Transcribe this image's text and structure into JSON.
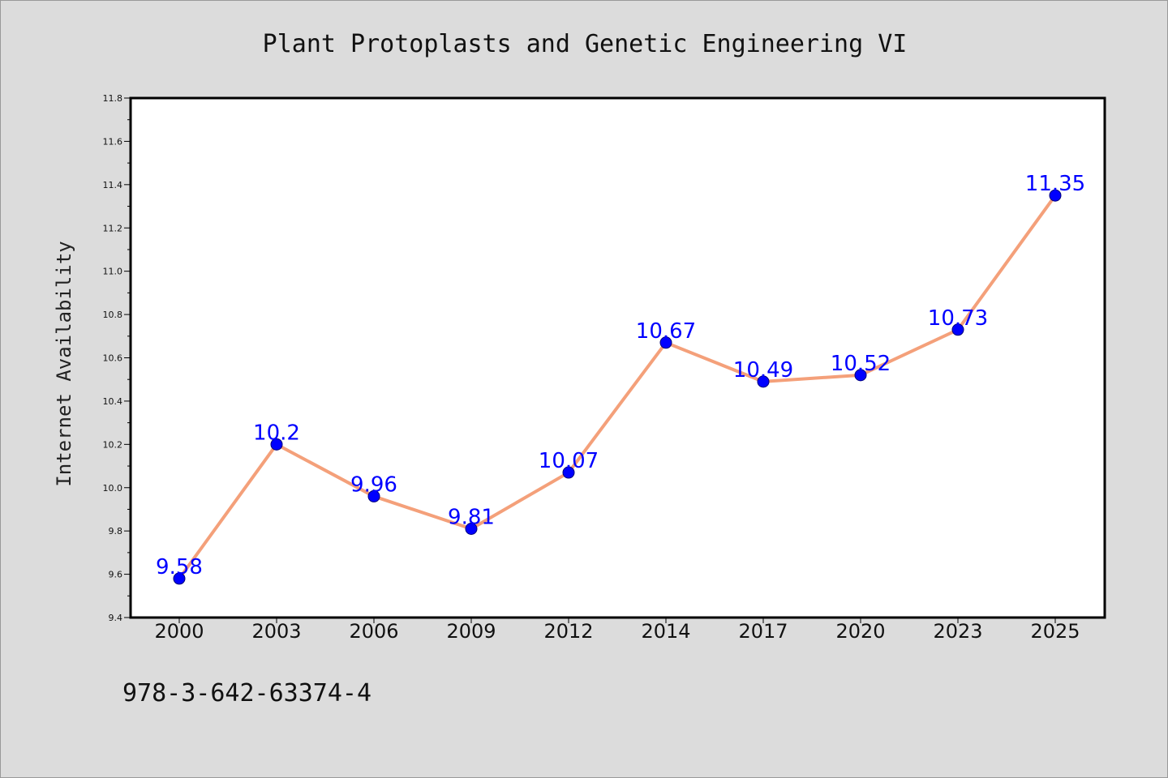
{
  "chart_data": {
    "type": "line",
    "title": "Plant Protoplasts and Genetic Engineering VI",
    "xlabel": "",
    "ylabel": "Internet Availability",
    "categories": [
      "2000",
      "2003",
      "2006",
      "2009",
      "2012",
      "2014",
      "2017",
      "2020",
      "2023",
      "2025"
    ],
    "series": [
      {
        "values": [
          9.58,
          10.2,
          9.96,
          9.81,
          10.07,
          10.67,
          10.49,
          10.52,
          10.73,
          11.35
        ],
        "data_labels": [
          "9.58",
          "10.2",
          "9.96",
          "9.81",
          "10.07",
          "10.67",
          "10.49",
          "10.52",
          "10.73",
          "11.35"
        ],
        "line_color": "#f4a07a",
        "marker_color": "#0000ff"
      }
    ],
    "ylim": [
      9.4,
      11.8
    ],
    "yticks": [
      "9.4",
      "9.6",
      "9.8",
      "10.0",
      "10.2",
      "10.4",
      "10.6",
      "10.8",
      "11.0",
      "11.2",
      "11.4",
      "11.6",
      "11.8"
    ],
    "grid": false,
    "legend": "none"
  },
  "footer": {
    "isbn": "978-3-642-63374-4"
  },
  "colors": {
    "background": "#dcdcdc",
    "plot_background": "#ffffff",
    "line": "#f4a07a",
    "marker": "#0000ff",
    "data_label": "#0000ff"
  }
}
